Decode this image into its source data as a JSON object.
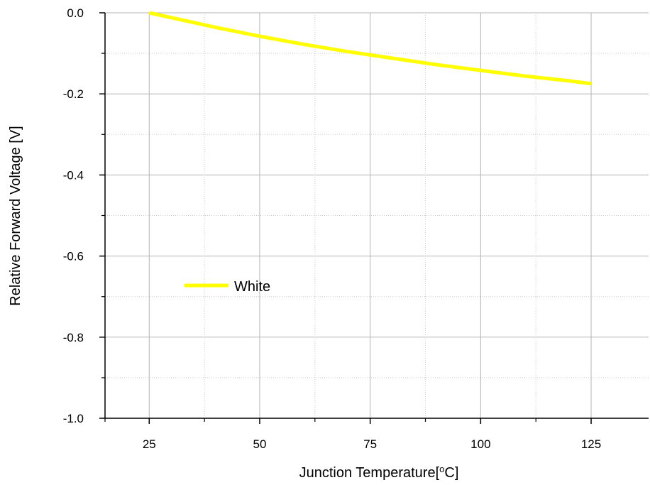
{
  "chart_data": {
    "type": "line",
    "xlabel": "Junction Temperature[°C]",
    "ylabel": "Relative Forward Voltage [V]",
    "xlim": [
      15,
      138
    ],
    "ylim": [
      -1.0,
      0.0
    ],
    "x_ticks": [
      25,
      50,
      75,
      100,
      125
    ],
    "x_minor_ticks": [
      37.5,
      62.5,
      87.5,
      112.5
    ],
    "y_ticks": [
      0.0,
      -0.2,
      -0.4,
      -0.6,
      -0.8,
      -1.0
    ],
    "y_minor_ticks": [
      -0.1,
      -0.3,
      -0.5,
      -0.7,
      -0.9
    ],
    "x_tick_labels": [
      "25",
      "50",
      "75",
      "100",
      "125"
    ],
    "y_tick_labels": [
      "0.0",
      "-0.2",
      "-0.4",
      "-0.6",
      "-0.8",
      "-1.0"
    ],
    "grid": true,
    "legend_position": "middle-left",
    "series": [
      {
        "name": "White",
        "color": "#FFFF00",
        "x": [
          25,
          30,
          35,
          40,
          45,
          50,
          55,
          60,
          65,
          70,
          75,
          80,
          85,
          90,
          95,
          100,
          105,
          110,
          115,
          120,
          125
        ],
        "y": [
          0.0,
          -0.012,
          -0.024,
          -0.036,
          -0.047,
          -0.058,
          -0.068,
          -0.078,
          -0.087,
          -0.096,
          -0.104,
          -0.112,
          -0.12,
          -0.128,
          -0.135,
          -0.142,
          -0.149,
          -0.156,
          -0.162,
          -0.168,
          -0.175
        ]
      }
    ]
  }
}
